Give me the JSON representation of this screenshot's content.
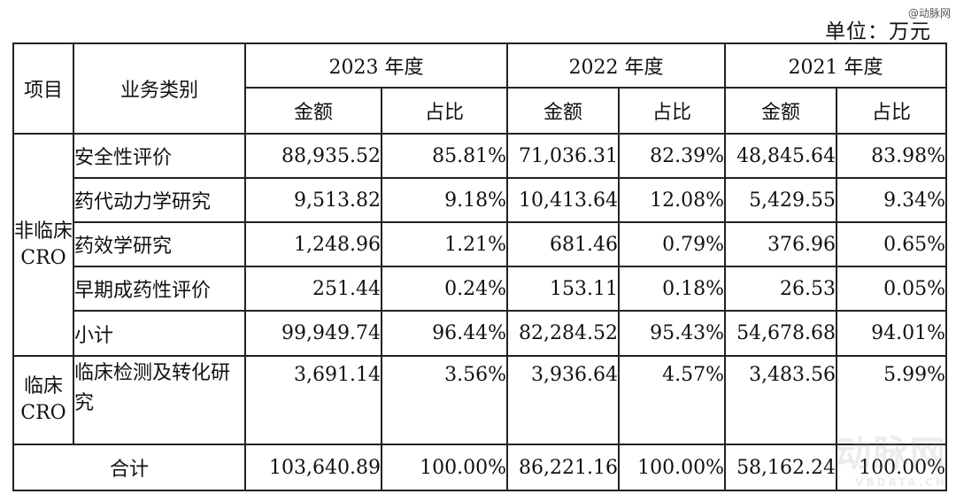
{
  "watermark_top": "@动脉网",
  "unit": "单位：万元",
  "header": {
    "item": "项目",
    "category": "业务类别",
    "years": [
      "2023 年度",
      "2022 年度",
      "2021 年度"
    ],
    "amount": "金额",
    "ratio": "占比"
  },
  "groups": {
    "nonclinical": "非临床CRO",
    "clinical": "临床CRO"
  },
  "rows": [
    {
      "category": "安全性评价",
      "v": [
        "88,935.52",
        "85.81%",
        "71,036.31",
        "82.39%",
        "48,845.64",
        "83.98%"
      ]
    },
    {
      "category": "药代动力学研究",
      "v": [
        "9,513.82",
        "9.18%",
        "10,413.64",
        "12.08%",
        "5,429.55",
        "9.34%"
      ]
    },
    {
      "category": "药效学研究",
      "v": [
        "1,248.96",
        "1.21%",
        "681.46",
        "0.79%",
        "376.96",
        "0.65%"
      ]
    },
    {
      "category": "早期成药性评价",
      "v": [
        "251.44",
        "0.24%",
        "153.11",
        "0.18%",
        "26.53",
        "0.05%"
      ]
    }
  ],
  "subtotal": {
    "label": "小计",
    "v": [
      "99,949.74",
      "96.44%",
      "82,284.52",
      "95.43%",
      "54,678.68",
      "94.01%"
    ]
  },
  "clinical_row": {
    "category": "临床检测及转化研究",
    "v": [
      "3,691.14",
      "3.56%",
      "3,936.64",
      "4.57%",
      "3,483.56",
      "5.99%"
    ]
  },
  "total": {
    "label": "合计",
    "v": [
      "103,640.89",
      "100.00%",
      "86,221.16",
      "100.00%",
      "58,162.24",
      "100.00%"
    ]
  },
  "watermark_bottom": "动脉网",
  "watermark_bottom_url": "VBDATA.CN"
}
